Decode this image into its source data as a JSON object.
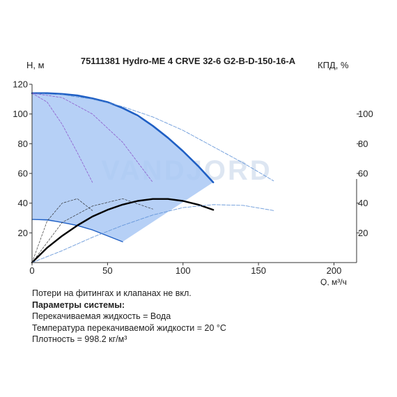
{
  "chart_data": {
    "type": "line",
    "title": "75111381 Hydro-ME 4 CRVE 32-6 G2-B-D-150-16-A",
    "ylabel": "Н, м",
    "ylabel_right": "КПД, %",
    "xlabel": "Q, м³/ч",
    "watermark": "VANDJORD",
    "xlim": [
      0,
      215
    ],
    "ylim": [
      0,
      120
    ],
    "ylim_right": [
      0,
      120
    ],
    "x_ticks": [
      0,
      50,
      100,
      150,
      200
    ],
    "y_ticks": [
      20,
      40,
      60,
      80,
      100,
      120
    ],
    "y_right_ticks": [
      20,
      40,
      60,
      80,
      100
    ],
    "grid": false,
    "operating_area": {
      "color": "#a9c8f5",
      "boundary": [
        [
          0,
          114
        ],
        [
          20,
          113.5
        ],
        [
          40,
          110.5
        ],
        [
          60,
          104
        ],
        [
          80,
          92
        ],
        [
          100,
          75
        ],
        [
          110,
          65
        ],
        [
          120,
          54
        ],
        [
          60,
          14
        ],
        [
          40,
          22
        ],
        [
          20,
          27
        ],
        [
          0,
          29
        ]
      ]
    },
    "series": [
      {
        "role": "max-head-curve",
        "color": "#1f5fc4",
        "x": [
          0,
          10,
          20,
          30,
          40,
          50,
          60,
          70,
          80,
          90,
          100,
          110,
          120
        ],
        "y": [
          114,
          114,
          113.5,
          112.5,
          110.5,
          108,
          104,
          99,
          92,
          84,
          75,
          65,
          54
        ]
      },
      {
        "role": "min-head-curve",
        "color": "#1f5fc4",
        "x": [
          0,
          10,
          20,
          30,
          40,
          50,
          60
        ],
        "y": [
          29,
          28.8,
          27,
          25,
          22,
          18,
          14
        ]
      },
      {
        "role": "efficiency-max",
        "color": "#000000",
        "x": [
          0,
          10,
          20,
          30,
          40,
          50,
          60,
          70,
          80,
          90,
          100,
          110,
          120
        ],
        "y": [
          0,
          10,
          18,
          25,
          31,
          35.5,
          39,
          41.5,
          42.8,
          42.8,
          41.5,
          39,
          35.5
        ]
      },
      {
        "role": "head-extended",
        "color": "#5b8fd6",
        "x": [
          0,
          20,
          40,
          60,
          80,
          100,
          120,
          140,
          160
        ],
        "y": [
          114,
          113,
          110,
          105,
          98,
          89,
          78,
          67,
          55
        ]
      },
      {
        "role": "power-extended",
        "color": "#5b8fd6",
        "x": [
          0,
          20,
          40,
          60,
          80,
          100,
          120,
          140,
          160
        ],
        "y": [
          0,
          8,
          17,
          25,
          32,
          37,
          39,
          38.5,
          35
        ]
      },
      {
        "role": "reduced-speed-1",
        "color": "#8a4fc9",
        "x": [
          0,
          10,
          20,
          30,
          40
        ],
        "y": [
          114,
          108,
          93,
          74,
          54
        ]
      },
      {
        "role": "reduced-speed-2",
        "color": "#8a4fc9",
        "x": [
          0,
          20,
          40,
          60,
          80
        ],
        "y": [
          114,
          111,
          100,
          81,
          54
        ]
      },
      {
        "role": "eff-reduced-1",
        "color": "#222222",
        "x": [
          0,
          10,
          20,
          30,
          40
        ],
        "y": [
          0,
          28,
          40,
          43,
          35
        ]
      },
      {
        "role": "eff-reduced-2",
        "color": "#222222",
        "x": [
          0,
          20,
          40,
          60,
          80
        ],
        "y": [
          0,
          27,
          38,
          43,
          36
        ]
      }
    ]
  },
  "info": {
    "losses_note": "Потери на фитингах и клапанах не вкл.",
    "params_title": "Параметры системы:",
    "fluid": "Перекачиваемая жидкость = Вода",
    "temperature": "Температура перекачиваемой жидкости = 20 °C",
    "density": "Плотность = 998.2 кг/м³"
  }
}
